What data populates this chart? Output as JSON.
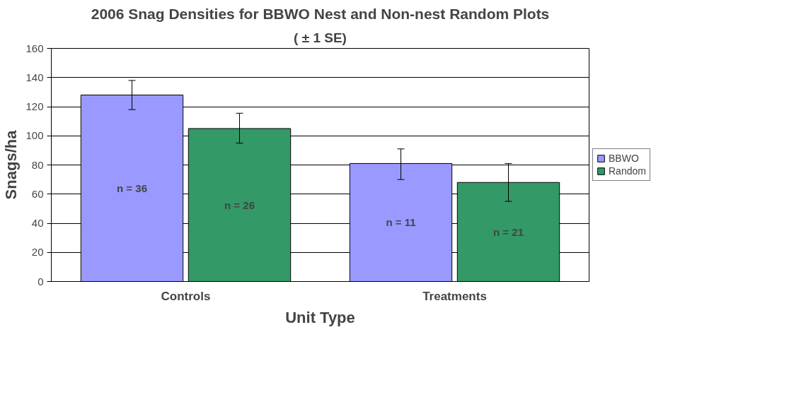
{
  "chart_data": {
    "type": "bar",
    "title": "2006 Snag Densities for BBWO Nest and Non-nest Random Plots",
    "subtitle": "( ± 1 SE)",
    "xlabel": "Unit Type",
    "ylabel": "Snags/ha",
    "categories": [
      "Controls",
      "Treatments"
    ],
    "series": [
      {
        "name": "BBWO",
        "color": "#9999ff",
        "values": [
          128,
          81
        ],
        "errors": [
          [
            118,
            138
          ],
          [
            70,
            91
          ]
        ]
      },
      {
        "name": "Random",
        "color": "#339966",
        "values": [
          105,
          68
        ],
        "errors": [
          [
            95,
            115.5
          ],
          [
            55,
            81
          ]
        ]
      }
    ],
    "annotations": [
      "n = 36",
      "n = 11",
      "n = 26",
      "n = 21"
    ],
    "ylim": [
      0,
      160
    ],
    "yticks": [
      0,
      20,
      40,
      60,
      80,
      100,
      120,
      140,
      160
    ],
    "grid": "y",
    "legend": "right"
  }
}
